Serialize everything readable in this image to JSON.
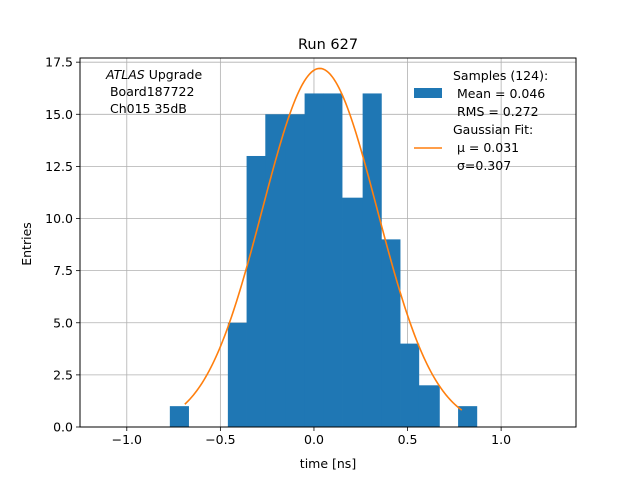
{
  "chart_data": {
    "type": "bar",
    "title": "Run 627",
    "xlabel": "time [ns]",
    "ylabel": "Entries",
    "xlim": [
      -1.25,
      1.4
    ],
    "ylim": [
      0,
      17.7
    ],
    "grid": true,
    "xticks": [
      -1.0,
      -0.5,
      0.0,
      0.5,
      1.0
    ],
    "xtick_labels": [
      "−1.0",
      "−0.5",
      "0.0",
      "0.5",
      "1.0"
    ],
    "yticks": [
      0.0,
      2.5,
      5.0,
      7.5,
      10.0,
      12.5,
      15.0,
      17.5
    ],
    "ytick_labels": [
      "0.0",
      "2.5",
      "5.0",
      "7.5",
      "10.0",
      "12.5",
      "15.0",
      "17.5"
    ],
    "histogram": {
      "color": "#1f77b4",
      "bin_edges": [
        -0.77,
        -0.67,
        -0.57,
        -0.46,
        -0.36,
        -0.26,
        -0.15,
        -0.05,
        0.05,
        0.15,
        0.26,
        0.36,
        0.46,
        0.56,
        0.67,
        0.77,
        0.87
      ],
      "counts": [
        1,
        0,
        0,
        5,
        13,
        15,
        15,
        16,
        16,
        11,
        16,
        9,
        4,
        2,
        0,
        1
      ]
    },
    "fit": {
      "color": "#ff7f0e",
      "type": "gaussian",
      "amplitude": 17.2,
      "mu": 0.031,
      "sigma": 0.307,
      "x_range": [
        -0.69,
        0.79
      ]
    },
    "annotation_lines": [
      {
        "italic": "ATLAS",
        "text": " Upgrade"
      },
      {
        "italic": "",
        "text": " Board187722"
      },
      {
        "italic": "",
        "text": " Ch015 35dB"
      }
    ],
    "legend": {
      "position": "top-right",
      "entries": [
        {
          "kind": "patch",
          "lines": [
            "Samples (124):",
            " Mean = 0.046",
            " RMS = 0.272"
          ]
        },
        {
          "kind": "line",
          "lines": [
            "Gaussian Fit:",
            " μ = 0.031",
            " σ=0.307"
          ]
        }
      ]
    }
  }
}
